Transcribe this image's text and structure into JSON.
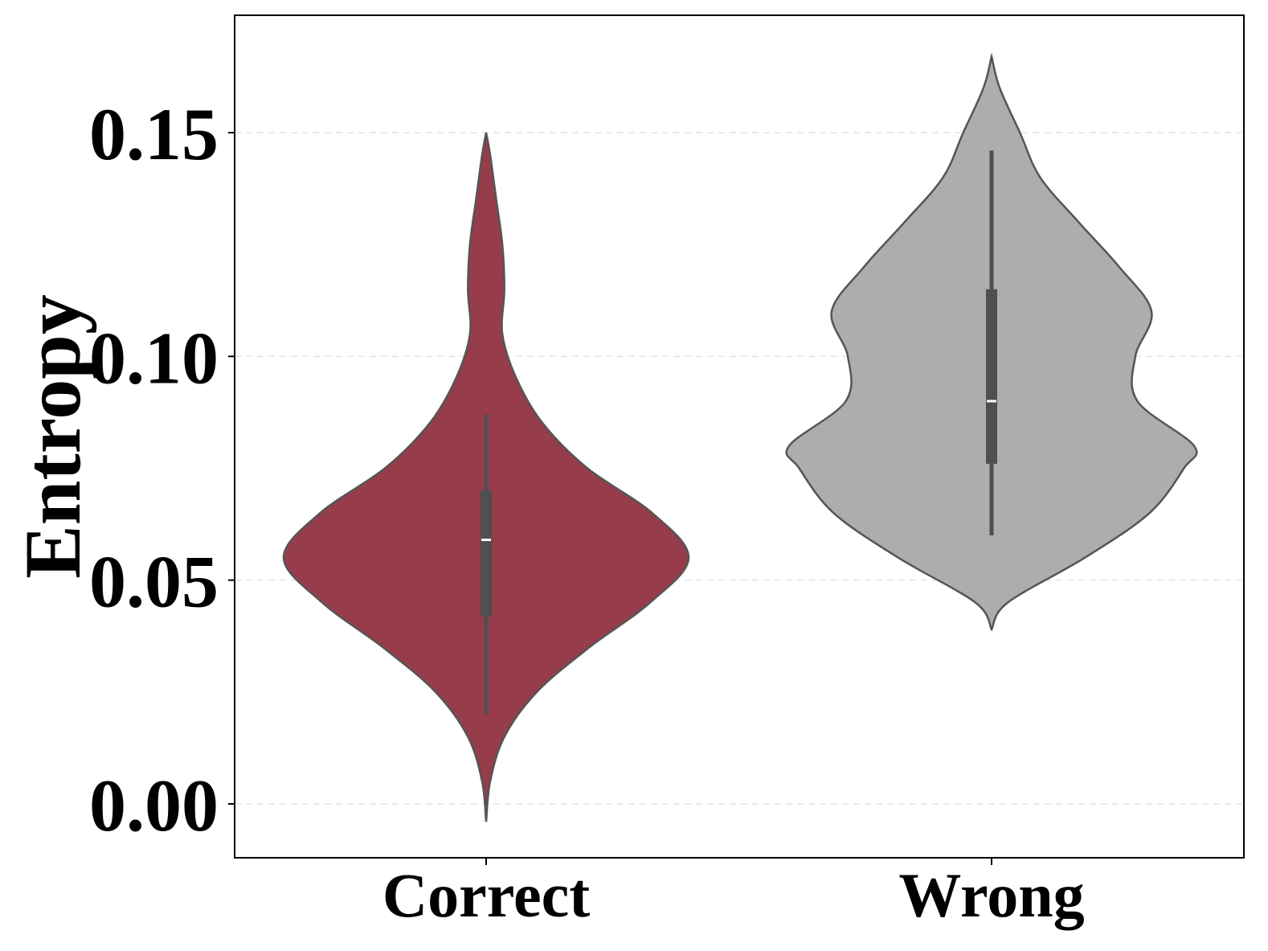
{
  "chart_data": {
    "type": "violin",
    "ylabel": "Entropy",
    "xlabel": "",
    "ylim": [
      -0.012,
      0.176
    ],
    "yticks": [
      "0.00",
      "0.05",
      "0.10",
      "0.15"
    ],
    "grid": "y-dashed",
    "categories": [
      "Correct",
      "Wrong"
    ],
    "series": [
      {
        "category": "Correct",
        "color": "#973c4a",
        "min": 0.02,
        "q1": 0.042,
        "median": 0.059,
        "q3": 0.07,
        "max": 0.087,
        "range": [
          -0.004,
          0.15
        ],
        "density_profile": [
          [
            -0.004,
            0.0
          ],
          [
            0.005,
            0.02
          ],
          [
            0.015,
            0.09
          ],
          [
            0.025,
            0.25
          ],
          [
            0.035,
            0.51
          ],
          [
            0.045,
            0.81
          ],
          [
            0.055,
            1.0
          ],
          [
            0.065,
            0.82
          ],
          [
            0.075,
            0.5
          ],
          [
            0.085,
            0.28
          ],
          [
            0.095,
            0.15
          ],
          [
            0.105,
            0.08
          ],
          [
            0.115,
            0.09
          ],
          [
            0.125,
            0.08
          ],
          [
            0.135,
            0.05
          ],
          [
            0.145,
            0.02
          ],
          [
            0.15,
            0.0
          ]
        ]
      },
      {
        "category": "Wrong",
        "color": "#adadad",
        "min": 0.06,
        "q1": 0.076,
        "median": 0.09,
        "q3": 0.115,
        "max": 0.146,
        "range": [
          0.039,
          0.167
        ],
        "density_profile": [
          [
            0.039,
            0.0
          ],
          [
            0.045,
            0.08
          ],
          [
            0.055,
            0.46
          ],
          [
            0.065,
            0.78
          ],
          [
            0.075,
            0.95
          ],
          [
            0.08,
            1.0
          ],
          [
            0.09,
            0.72
          ],
          [
            0.1,
            0.71
          ],
          [
            0.11,
            0.79
          ],
          [
            0.12,
            0.63
          ],
          [
            0.13,
            0.43
          ],
          [
            0.14,
            0.24
          ],
          [
            0.15,
            0.14
          ],
          [
            0.16,
            0.04
          ],
          [
            0.167,
            0.0
          ]
        ]
      }
    ]
  }
}
